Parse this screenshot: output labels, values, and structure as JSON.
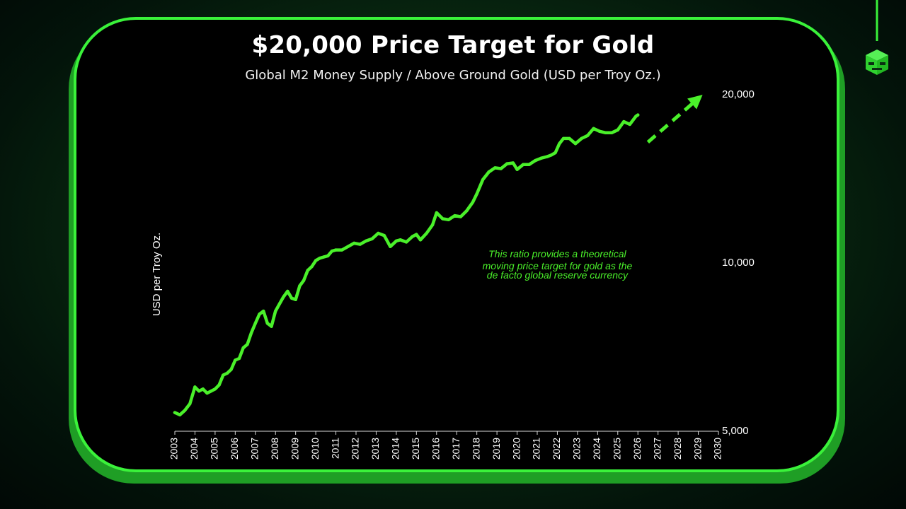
{
  "title": "$20,000 Price Target for Gold",
  "subtitle": "Global M2 Money Supply / Above Ground Gold (USD per Troy Oz.)",
  "colors": {
    "line": "#4af02a",
    "accent": "#3af23a",
    "background": "#000000",
    "annotation": "#4af02a"
  },
  "logo_icon": "cube-mascot-icon",
  "chart_data": {
    "type": "line",
    "title": "$20,000 Price Target for Gold",
    "subtitle": "Global M2 Money Supply / Above Ground Gold (USD per Troy Oz.)",
    "ylabel": "USD per Troy Oz.",
    "xlabel": "",
    "y_scale": "log",
    "ylim": [
      5000,
      20000
    ],
    "xlim": [
      2003,
      2030
    ],
    "y_ticks": [
      5000,
      10000,
      20000
    ],
    "y_tick_labels": [
      "5,000",
      "10,000",
      "20,000"
    ],
    "x_ticks": [
      "2003",
      "2004",
      "2005",
      "2006",
      "2007",
      "2008",
      "2009",
      "2010",
      "2011",
      "2012",
      "2013",
      "2014",
      "2015",
      "2016",
      "2017",
      "2018",
      "2019",
      "2020",
      "2021",
      "2022",
      "2023",
      "2024",
      "2025",
      "2026",
      "2027",
      "2028",
      "2029",
      "2030"
    ],
    "grid": false,
    "series": [
      {
        "style": "solid",
        "x": [
          2003.0,
          2003.25,
          2003.5,
          2003.75,
          2004.0,
          2004.2,
          2004.4,
          2004.6,
          2004.8,
          2005.0,
          2005.2,
          2005.4,
          2005.6,
          2005.8,
          2006.0,
          2006.2,
          2006.4,
          2006.6,
          2006.8,
          2007.0,
          2007.2,
          2007.4,
          2007.6,
          2007.8,
          2008.0,
          2008.2,
          2008.4,
          2008.6,
          2008.8,
          2009.0,
          2009.2,
          2009.4,
          2009.6,
          2009.8,
          2010.0,
          2010.2,
          2010.4,
          2010.6,
          2010.8,
          2011.0,
          2011.3,
          2011.6,
          2011.9,
          2012.2,
          2012.5,
          2012.8,
          2013.1,
          2013.4,
          2013.7,
          2014.0,
          2014.2,
          2014.5,
          2014.8,
          2015.0,
          2015.2,
          2015.5,
          2015.8,
          2016.0,
          2016.3,
          2016.6,
          2016.9,
          2017.2,
          2017.5,
          2017.8,
          2018.0,
          2018.3,
          2018.6,
          2018.9,
          2019.2,
          2019.5,
          2019.8,
          2020.0,
          2020.3,
          2020.6,
          2020.9,
          2021.2,
          2021.5,
          2021.7,
          2021.9,
          2022.1,
          2022.3,
          2022.6,
          2022.9,
          2023.2,
          2023.5,
          2023.8,
          2024.1,
          2024.4,
          2024.7,
          2025.0,
          2025.3,
          2025.6,
          2025.9,
          2026.0
        ],
        "values": [
          5400,
          5350,
          5450,
          5600,
          6000,
          5900,
          5950,
          5850,
          5900,
          5950,
          6050,
          6300,
          6350,
          6450,
          6700,
          6750,
          7050,
          7150,
          7500,
          7800,
          8100,
          8200,
          7800,
          7700,
          8200,
          8450,
          8700,
          8900,
          8650,
          8600,
          9100,
          9300,
          9700,
          9850,
          10100,
          10200,
          10250,
          10300,
          10500,
          10550,
          10550,
          10700,
          10850,
          10800,
          10950,
          11050,
          11300,
          11200,
          10700,
          10950,
          11000,
          10900,
          11150,
          11250,
          11000,
          11300,
          11700,
          12300,
          12000,
          11950,
          12150,
          12100,
          12400,
          12850,
          13300,
          14100,
          14550,
          14800,
          14750,
          15050,
          15100,
          14700,
          15000,
          15000,
          15250,
          15400,
          15500,
          15600,
          15750,
          16350,
          16700,
          16700,
          16350,
          16700,
          16900,
          17400,
          17200,
          17100,
          17100,
          17300,
          17900,
          17700,
          18300,
          18400
        ]
      },
      {
        "style": "dashed-arrow",
        "x": [
          2026.5,
          2029.0
        ],
        "values": [
          16450,
          19700
        ]
      }
    ],
    "annotations": [
      {
        "text": "This ratio provides a theoretical",
        "x": 2022.0,
        "y": 10350
      },
      {
        "text": "moving price target for gold as the",
        "x": 2022.0,
        "y": 9850
      },
      {
        "text": "de facto global reserve currency",
        "x": 2022.0,
        "y": 9480
      }
    ]
  }
}
